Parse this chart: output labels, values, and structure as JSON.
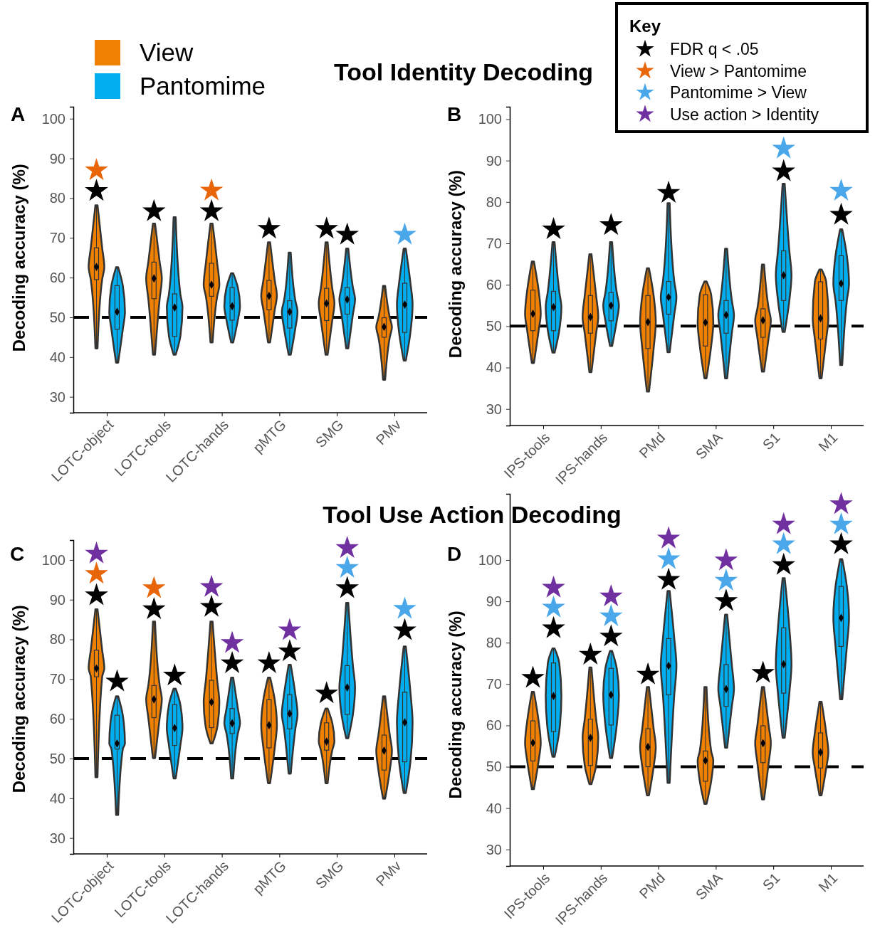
{
  "chart_data": [
    {
      "type": "box",
      "title": "Tool Identity Decoding",
      "subtitle": "A",
      "ylabel": "Decoding accuracy (%)",
      "categories": [
        "LOTC-object",
        "LOTC-tools",
        "LOTC-hands",
        "pMTG",
        "SMG",
        "PMv"
      ],
      "ylim": [
        26,
        103
      ],
      "yticks": [
        30,
        40,
        50,
        60,
        70,
        80,
        90,
        100
      ],
      "legend": "top left",
      "marker": "star",
      "ref_lines": [
        {
          "axis": "y",
          "value": 50,
          "line_style": "dashed",
          "color": "#000000"
        }
      ],
      "series": [
        {
          "name": "View",
          "color": "#f08000",
          "boxes": [
            {
              "low": 42.2,
              "q1": 59.5,
              "median": 62.7,
              "q3": 67.5,
              "high": 78.2,
              "mean": 62.7
            },
            {
              "low": 40.6,
              "q1": 54.7,
              "median": 59.8,
              "q3": 63.9,
              "high": 73.6,
              "mean": 59.8
            },
            {
              "low": 43.7,
              "q1": 55.3,
              "median": 58.2,
              "q3": 63.6,
              "high": 73.6,
              "mean": 58.2
            },
            {
              "low": 43.7,
              "q1": 51.9,
              "median": 55.4,
              "q3": 59.3,
              "high": 68.9,
              "mean": 55.4
            },
            {
              "low": 40.6,
              "q1": 49.2,
              "median": 53.5,
              "q3": 57.3,
              "high": 68.9,
              "mean": 53.5
            },
            {
              "low": 34.3,
              "q1": 45,
              "median": 47.6,
              "q3": 49.9,
              "high": 57.9,
              "mean": 47.6
            }
          ]
        },
        {
          "name": "Pantomime",
          "color": "#00aeef",
          "boxes": [
            {
              "low": 38.6,
              "q1": 47,
              "median": 51.4,
              "q3": 58,
              "high": 62.6,
              "mean": 51.4
            },
            {
              "low": 40.6,
              "q1": 45.2,
              "median": 52.5,
              "q3": 55.9,
              "high": 75.2,
              "mean": 52.5
            },
            {
              "low": 43.7,
              "q1": 49.3,
              "median": 52.8,
              "q3": 57.5,
              "high": 61.1,
              "mean": 52.8
            },
            {
              "low": 40.6,
              "q1": 47.3,
              "median": 51.4,
              "q3": 54.2,
              "high": 66.3,
              "mean": 51.4
            },
            {
              "low": 42.2,
              "q1": 50.8,
              "median": 54.5,
              "q3": 57.5,
              "high": 67.3,
              "mean": 54.5
            },
            {
              "low": 39.1,
              "q1": 46.2,
              "median": 53.2,
              "q3": 58.6,
              "high": 67.3,
              "mean": 53.2
            }
          ]
        },
        {
          "type": "scatter",
          "color": "#000000",
          "values": [
            81.8,
            76.7,
            76.7,
            72.3,
            72.3,
            null
          ]
        },
        {
          "type": "scatter",
          "color": "#000000",
          "values": [
            null,
            null,
            null,
            null,
            70.8,
            null
          ]
        },
        {
          "type": "scatter",
          "color": "#e8650a",
          "values": [
            87,
            null,
            81.9,
            null,
            null,
            null
          ]
        },
        {
          "type": "scatter",
          "color": "#e8650a",
          "values": [
            null,
            null,
            null,
            null,
            null,
            null
          ]
        },
        {
          "type": "scatter",
          "color": "#4aa8ea",
          "values": [
            null,
            null,
            null,
            null,
            null,
            null
          ]
        },
        {
          "type": "scatter",
          "color": "#4aa8ea",
          "values": [
            null,
            null,
            null,
            null,
            null,
            70.8
          ]
        }
      ]
    },
    {
      "type": "box",
      "subtitle": "B",
      "ylabel": "Decoding accuracy (%)",
      "categories": [
        "IPS-tools",
        "IPS-hands",
        "PMd",
        "SMA",
        "S1",
        "M1"
      ],
      "ylim": [
        26,
        103
      ],
      "yticks": [
        30,
        40,
        50,
        60,
        70,
        80,
        90,
        100
      ],
      "marker": "star",
      "ref_lines": [
        {
          "axis": "y",
          "value": 50,
          "line_style": "dashed",
          "color": "#000000"
        }
      ],
      "series": [
        {
          "color": "#f08000",
          "boxes": [
            {
              "low": 41.1,
              "q1": 48.9,
              "median": 53,
              "q3": 58.7,
              "high": 65.6,
              "mean": 53
            },
            {
              "low": 38.9,
              "q1": 48.3,
              "median": 52.2,
              "q3": 57.4,
              "high": 67.4,
              "mean": 52.2
            },
            {
              "low": 34.2,
              "q1": 44.6,
              "median": 51,
              "q3": 57.4,
              "high": 64,
              "mean": 51
            },
            {
              "low": 37.4,
              "q1": 45.2,
              "median": 50.9,
              "q3": 57.6,
              "high": 60.8,
              "mean": 50.9
            },
            {
              "low": 39,
              "q1": 47.3,
              "median": 51.4,
              "q3": 54.2,
              "high": 64.9,
              "mean": 51.4
            },
            {
              "low": 37.4,
              "q1": 46.9,
              "median": 51.9,
              "q3": 60.7,
              "high": 63.7,
              "mean": 51.9
            }
          ]
        },
        {
          "color": "#00aeef",
          "boxes": [
            {
              "low": 43.6,
              "q1": 48.9,
              "median": 54.6,
              "q3": 58.4,
              "high": 70.3,
              "mean": 54.6
            },
            {
              "low": 45.2,
              "q1": 51.3,
              "median": 55,
              "q3": 58.1,
              "high": 70.3,
              "mean": 55
            },
            {
              "low": 43.7,
              "q1": 52.9,
              "median": 57,
              "q3": 60.8,
              "high": 79.7,
              "mean": 57
            },
            {
              "low": 37.4,
              "q1": 48.3,
              "median": 52.7,
              "q3": 56.2,
              "high": 68.7,
              "mean": 52.7
            },
            {
              "low": 48.6,
              "q1": 56.2,
              "median": 62.3,
              "q3": 68.2,
              "high": 84.4,
              "mean": 62.3
            },
            {
              "low": 40.6,
              "q1": 56.2,
              "median": 60.3,
              "q3": 67,
              "high": 73.4,
              "mean": 60.3
            }
          ]
        },
        {
          "type": "scatter",
          "color": "#000000",
          "values": [
            null,
            null,
            null,
            null,
            null,
            null
          ]
        },
        {
          "type": "scatter",
          "color": "#000000",
          "values": [
            73.4,
            74.4,
            82.2,
            null,
            87.4,
            76.9
          ]
        },
        {
          "type": "scatter",
          "color": "#4aa8ea",
          "values": [
            null,
            null,
            null,
            null,
            null,
            null
          ]
        },
        {
          "type": "scatter",
          "color": "#4aa8ea",
          "values": [
            null,
            null,
            null,
            null,
            92.9,
            82.7
          ]
        }
      ]
    },
    {
      "type": "box",
      "title": "Tool Use Action Decoding",
      "subtitle": "C",
      "ylabel": "Decoding accuracy (%)",
      "categories": [
        "LOTC-object",
        "LOTC-tools",
        "LOTC-hands",
        "pMTG",
        "SMG",
        "PMv"
      ],
      "ylim": [
        26,
        105
      ],
      "yticks": [
        30,
        40,
        50,
        60,
        70,
        80,
        90,
        100
      ],
      "legend": "top right",
      "legend_title": "Key",
      "marker": "star",
      "ref_lines": [
        {
          "axis": "y",
          "value": 50,
          "line_style": "dashed",
          "color": "#000000"
        }
      ],
      "series": [
        {
          "color": "#f08000",
          "boxes": [
            {
              "low": 45.3,
              "q1": 70.6,
              "median": 72.7,
              "q3": 77.3,
              "high": 87.6,
              "mean": 72.7
            },
            {
              "low": 50.1,
              "q1": 60.3,
              "median": 64.9,
              "q3": 68.4,
              "high": 84.5,
              "mean": 64.9
            },
            {
              "low": 53.8,
              "q1": 57.8,
              "median": 64.2,
              "q3": 69.7,
              "high": 84.5,
              "mean": 64.2
            },
            {
              "low": 43.8,
              "q1": 52.7,
              "median": 58.4,
              "q3": 64.8,
              "high": 70.4,
              "mean": 58.4
            },
            {
              "low": 43.8,
              "q1": 52.1,
              "median": 54.3,
              "q3": 59,
              "high": 62.6,
              "mean": 54.3
            },
            {
              "low": 39.9,
              "q1": 47.1,
              "median": 52,
              "q3": 55.9,
              "high": 65.7,
              "mean": 52
            }
          ]
        },
        {
          "color": "#00aeef",
          "boxes": [
            {
              "low": 35.8,
              "q1": 52.4,
              "median": 53.8,
              "q3": 60.9,
              "high": 65.7,
              "mean": 53.8
            },
            {
              "low": 45,
              "q1": 53.3,
              "median": 57.7,
              "q3": 63.6,
              "high": 67.6,
              "mean": 57.7
            },
            {
              "low": 45,
              "q1": 56.3,
              "median": 58.9,
              "q3": 62.6,
              "high": 70.4,
              "mean": 58.9
            },
            {
              "low": 46.2,
              "q1": 57.5,
              "median": 61.3,
              "q3": 66.1,
              "high": 73.6,
              "mean": 61.3
            },
            {
              "low": 55.1,
              "q1": 61.1,
              "median": 67.9,
              "q3": 73.4,
              "high": 89.2,
              "mean": 67.9
            },
            {
              "low": 41.3,
              "q1": 49.2,
              "median": 59.1,
              "q3": 66.7,
              "high": 78.2,
              "mean": 59.1
            }
          ]
        },
        {
          "type": "scatter",
          "name": "FDR q < .05",
          "color": "#000000",
          "values": [
            91.1,
            87.6,
            88.2,
            74,
            66.4,
            null
          ]
        },
        {
          "type": "scatter",
          "color": "#000000",
          "values": [
            69.4,
            70.9,
            74,
            77,
            92.9,
            82.3
          ]
        },
        {
          "type": "scatter",
          "name": "View > Pantomime",
          "color": "#e8650a",
          "values": [
            96.5,
            92.9,
            null,
            null,
            null,
            null
          ]
        },
        {
          "type": "scatter",
          "color": "#e8650a",
          "values": [
            null,
            null,
            null,
            null,
            null,
            null
          ]
        },
        {
          "type": "scatter",
          "color": "#4aa8ea",
          "values": [
            null,
            null,
            null,
            null,
            null,
            null
          ]
        },
        {
          "type": "scatter",
          "name": "Pantomime > View",
          "color": "#4aa8ea",
          "values": [
            null,
            null,
            null,
            null,
            98,
            87.7
          ]
        },
        {
          "type": "scatter",
          "name": "Use action > Identity",
          "color": "#7030a0",
          "values": [
            101.6,
            null,
            93.2,
            null,
            null,
            null
          ]
        },
        {
          "type": "scatter",
          "color": "#7030a0",
          "values": [
            null,
            null,
            79.1,
            82.3,
            103,
            null
          ]
        }
      ]
    },
    {
      "type": "box",
      "subtitle": "D",
      "ylabel": "Decoding accuracy (%)",
      "categories": [
        "IPS-tools",
        "IPS-hands",
        "PMd",
        "SMA",
        "S1",
        "M1"
      ],
      "ylim": [
        26,
        116
      ],
      "yticks": [
        30,
        40,
        50,
        60,
        70,
        80,
        90,
        100
      ],
      "marker": "star",
      "ref_lines": [
        {
          "axis": "y",
          "value": 50,
          "line_style": "dashed",
          "color": "#000000"
        }
      ],
      "series": [
        {
          "color": "#f08000",
          "boxes": [
            {
              "low": 44.6,
              "q1": 51.4,
              "median": 55.8,
              "q3": 61.1,
              "high": 68.1,
              "mean": 55.8
            },
            {
              "low": 45.8,
              "q1": 50.3,
              "median": 57,
              "q3": 61.5,
              "high": 74,
              "mean": 57
            },
            {
              "low": 43.1,
              "q1": 50,
              "median": 54.8,
              "q3": 59.2,
              "high": 69.3,
              "mean": 54.8
            },
            {
              "low": 41,
              "q1": 46.5,
              "median": 51.5,
              "q3": 53.8,
              "high": 69.3,
              "mean": 51.5
            },
            {
              "low": 42.1,
              "q1": 51,
              "median": 55.7,
              "q3": 59.9,
              "high": 69.3,
              "mean": 55.7
            },
            {
              "low": 43.1,
              "q1": 49.7,
              "median": 53.5,
              "q3": 58.2,
              "high": 65.7,
              "mean": 53.5
            }
          ]
        },
        {
          "color": "#00aeef",
          "boxes": [
            {
              "low": 52.4,
              "q1": 58.5,
              "median": 67.1,
              "q3": 75.1,
              "high": 78.6,
              "mean": 67.1
            },
            {
              "low": 52.1,
              "q1": 60.1,
              "median": 67.4,
              "q3": 73.8,
              "high": 78,
              "mean": 67.4
            },
            {
              "low": 46.1,
              "q1": 67.4,
              "median": 74.4,
              "q3": 81,
              "high": 92.5,
              "mean": 74.4
            },
            {
              "low": 54.6,
              "q1": 64.6,
              "median": 68.8,
              "q3": 74.7,
              "high": 86.8,
              "mean": 68.8
            },
            {
              "low": 57,
              "q1": 67.8,
              "median": 74.8,
              "q3": 83.6,
              "high": 95.6,
              "mean": 74.8
            },
            {
              "low": 66.3,
              "q1": 79.1,
              "median": 86,
              "q3": 93.6,
              "high": 100.2,
              "mean": 86
            }
          ]
        },
        {
          "type": "scatter",
          "color": "#000000",
          "values": [
            71.5,
            77.1,
            72.3,
            null,
            72.7,
            null
          ]
        },
        {
          "type": "scatter",
          "color": "#000000",
          "values": [
            83.5,
            81.5,
            95.2,
            90.1,
            98.8,
            103.8
          ]
        },
        {
          "type": "scatter",
          "color": "#4aa8ea",
          "values": [
            null,
            null,
            null,
            null,
            null,
            null
          ]
        },
        {
          "type": "scatter",
          "color": "#4aa8ea",
          "values": [
            88.5,
            86.4,
            100.2,
            95,
            103.8,
            108.6
          ]
        },
        {
          "type": "scatter",
          "color": "#7030a0",
          "values": [
            null,
            null,
            null,
            null,
            null,
            null
          ]
        },
        {
          "type": "scatter",
          "color": "#7030a0",
          "values": [
            93.3,
            91.2,
            105.2,
            99.9,
            108.6,
            113.5
          ]
        }
      ]
    }
  ]
}
